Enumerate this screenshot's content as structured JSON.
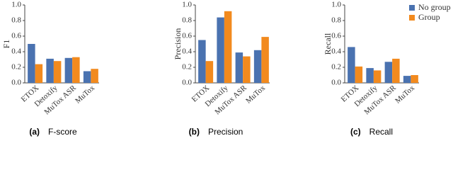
{
  "chart_data": [
    {
      "type": "bar",
      "ylabel": "F1",
      "caption_label": "(a)",
      "caption": "F-score",
      "categories": [
        "ETOX",
        "Detoxify",
        "MuTox ASR",
        "MuTox"
      ],
      "series": [
        {
          "color": "#4a72b0",
          "values": [
            0.5,
            0.31,
            0.32,
            0.15
          ]
        },
        {
          "color": "#f28a1e",
          "values": [
            0.24,
            0.28,
            0.33,
            0.18
          ]
        }
      ],
      "ylim": [
        0,
        1
      ],
      "yticks": [
        {
          "value": 0,
          "label": "0.0"
        },
        0.2,
        0.4,
        0.6,
        0.8,
        {
          "value": 1,
          "label": "1.0"
        }
      ]
    },
    {
      "type": "bar",
      "ylabel": "Precision",
      "caption_label": "(b)",
      "caption": "Precision",
      "categories": [
        "ETOX",
        "Detoxify",
        "MuTox ASR",
        "MuTox"
      ],
      "series": [
        {
          "color": "#4a72b0",
          "values": [
            0.55,
            0.84,
            0.39,
            0.42
          ]
        },
        {
          "color": "#f28a1e",
          "values": [
            0.28,
            0.92,
            0.34,
            0.59
          ]
        }
      ],
      "ylim": [
        0,
        1
      ],
      "yticks": [
        {
          "value": 0,
          "label": "0.0"
        },
        0.2,
        0.4,
        0.6,
        0.8,
        {
          "value": 1,
          "label": "1.0"
        }
      ]
    },
    {
      "type": "bar",
      "ylabel": "Recall",
      "caption_label": "(c)",
      "caption": "Recall",
      "legend": "upper right",
      "categories": [
        "ETOX",
        "Detoxify",
        "MuTox ASR",
        "MuTox"
      ],
      "series": [
        {
          "name": "No group",
          "color": "#4a72b0",
          "values": [
            0.46,
            0.19,
            0.27,
            0.09
          ]
        },
        {
          "name": "Group",
          "color": "#f28a1e",
          "values": [
            0.21,
            0.16,
            0.31,
            0.1
          ]
        }
      ],
      "ylim": [
        0,
        1
      ],
      "yticks": [
        {
          "value": 0,
          "label": "0.0"
        },
        0.2,
        0.4,
        0.6,
        0.8,
        {
          "value": 1,
          "label": "1.0"
        }
      ]
    }
  ]
}
